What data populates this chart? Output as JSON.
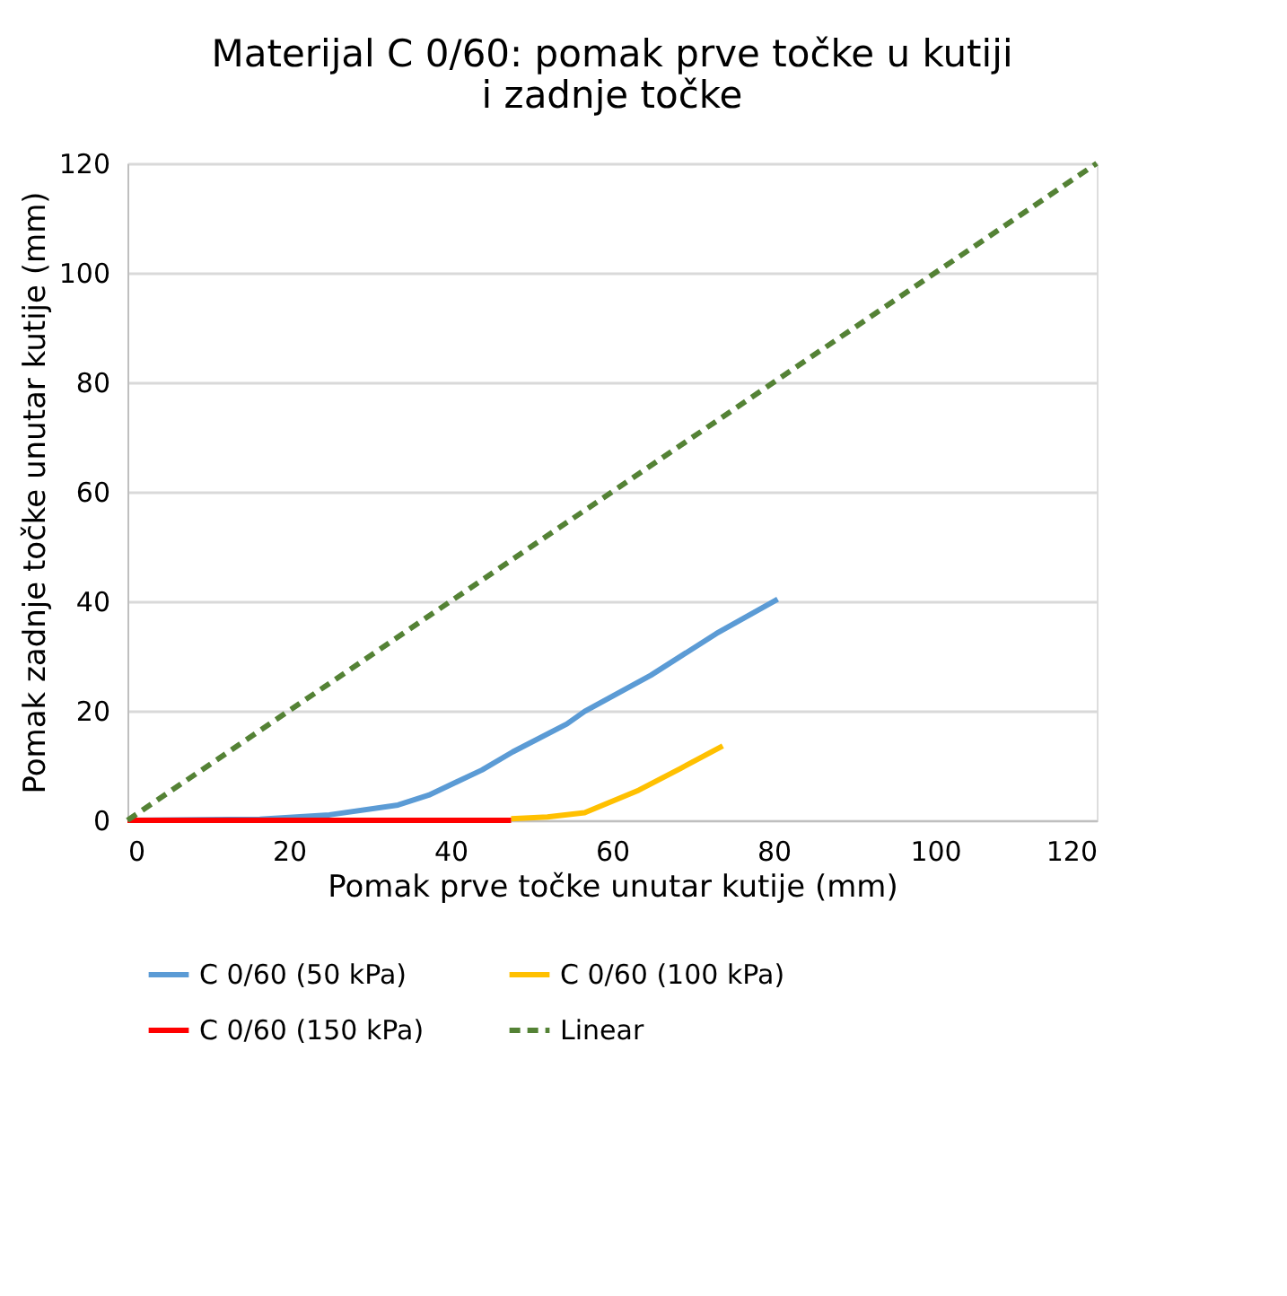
{
  "chart_data": {
    "type": "line",
    "title": "Materijal C 0/60: pomak prve točke u kutiji i zadnje točke",
    "xlabel": "Pomak prve točke unutar kutije (mm)",
    "ylabel": "Pomak zadnje točke unutar kutije (mm)",
    "xlim": [
      0,
      120
    ],
    "xticks": [
      0,
      20,
      40,
      60,
      80,
      100,
      120
    ],
    "ylim": [
      0,
      120
    ],
    "yticks": [
      0,
      20,
      40,
      60,
      80,
      100,
      120
    ],
    "grid": "y",
    "legend": "bottom",
    "marker": "none",
    "series": [
      {
        "name": "C 0/60 (50 kPa)",
        "color": "#5b9bd5",
        "x": [
          0,
          16.4,
          25,
          33.5,
          37.3,
          43.9,
          47.7,
          54.4,
          56.6,
          64.8,
          72.9,
          80.5
        ],
        "values": [
          0,
          0.2,
          1,
          2.8,
          4.6,
          9.2,
          12.5,
          17.6,
          19.9,
          26.5,
          34.1,
          40.4
        ]
      },
      {
        "name": "C 0/60 (100 kPa)",
        "color": "#ffc000",
        "x": [
          47.5,
          52,
          56.6,
          63.3,
          68.5,
          73.7
        ],
        "values": [
          0.3,
          0.6,
          1.4,
          5.5,
          9.5,
          13.6
        ]
      },
      {
        "name": "C 0/60 (150 kPa)",
        "color": "#ff0000",
        "x": [
          0,
          10,
          20,
          30,
          40,
          47.5
        ],
        "values": [
          0,
          0,
          0,
          0,
          0,
          0
        ]
      },
      {
        "name": "Linear",
        "color": "#548235",
        "line_style": "dashed",
        "x": [
          0,
          120
        ],
        "values": [
          0,
          120
        ]
      }
    ]
  }
}
